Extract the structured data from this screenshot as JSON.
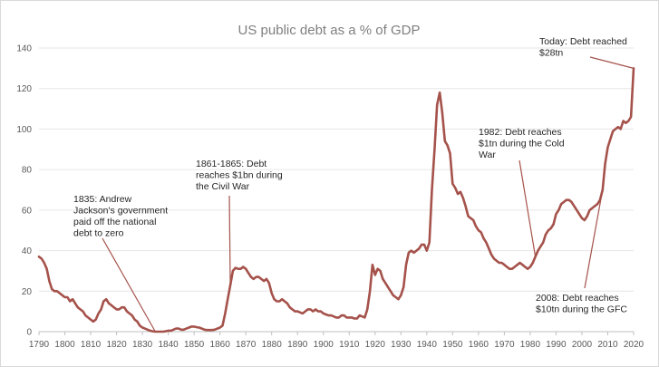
{
  "chart_data": {
    "type": "line",
    "title": "US public debt as a % of GDP",
    "xlabel": "",
    "ylabel": "",
    "xlim": [
      1790,
      2020
    ],
    "ylim": [
      0,
      140
    ],
    "x_ticks": [
      "1790",
      "1800",
      "1810",
      "1820",
      "1830",
      "1840",
      "1850",
      "1860",
      "1870",
      "1880",
      "1890",
      "1900",
      "1910",
      "1920",
      "1930",
      "1940",
      "1950",
      "1960",
      "1970",
      "1980",
      "1990",
      "2000",
      "2010",
      "2020"
    ],
    "y_ticks": [
      "0",
      "20",
      "40",
      "60",
      "80",
      "100",
      "120",
      "140"
    ],
    "grid": true,
    "series": [
      {
        "color": "#a5524b",
        "points": [
          [
            1790,
            37
          ],
          [
            1791,
            36
          ],
          [
            1792,
            34
          ],
          [
            1793,
            31
          ],
          [
            1794,
            25
          ],
          [
            1795,
            21
          ],
          [
            1796,
            20
          ],
          [
            1797,
            20
          ],
          [
            1798,
            19
          ],
          [
            1799,
            18
          ],
          [
            1800,
            17
          ],
          [
            1801,
            17
          ],
          [
            1802,
            15
          ],
          [
            1803,
            16
          ],
          [
            1804,
            14
          ],
          [
            1805,
            12
          ],
          [
            1806,
            11
          ],
          [
            1807,
            10
          ],
          [
            1808,
            8
          ],
          [
            1809,
            7
          ],
          [
            1810,
            6
          ],
          [
            1811,
            5
          ],
          [
            1812,
            6
          ],
          [
            1813,
            9
          ],
          [
            1814,
            11
          ],
          [
            1815,
            15
          ],
          [
            1816,
            16
          ],
          [
            1817,
            14
          ],
          [
            1818,
            13
          ],
          [
            1819,
            12
          ],
          [
            1820,
            11
          ],
          [
            1821,
            11
          ],
          [
            1822,
            12
          ],
          [
            1823,
            12
          ],
          [
            1824,
            10
          ],
          [
            1825,
            9
          ],
          [
            1826,
            8
          ],
          [
            1827,
            6
          ],
          [
            1828,
            5
          ],
          [
            1829,
            3
          ],
          [
            1830,
            2
          ],
          [
            1831,
            1.5
          ],
          [
            1832,
            1
          ],
          [
            1833,
            0.5
          ],
          [
            1834,
            0.2
          ],
          [
            1835,
            0
          ],
          [
            1836,
            0
          ],
          [
            1837,
            0
          ],
          [
            1838,
            0
          ],
          [
            1839,
            0.2
          ],
          [
            1840,
            0.5
          ],
          [
            1841,
            0.5
          ],
          [
            1842,
            1
          ],
          [
            1843,
            1.5
          ],
          [
            1844,
            1.5
          ],
          [
            1845,
            1
          ],
          [
            1846,
            1
          ],
          [
            1847,
            1.5
          ],
          [
            1848,
            2
          ],
          [
            1849,
            2.5
          ],
          [
            1850,
            2.5
          ],
          [
            1851,
            2.2
          ],
          [
            1852,
            2
          ],
          [
            1853,
            1.5
          ],
          [
            1854,
            1
          ],
          [
            1855,
            0.8
          ],
          [
            1856,
            0.8
          ],
          [
            1857,
            0.8
          ],
          [
            1858,
            1
          ],
          [
            1859,
            1.5
          ],
          [
            1860,
            2
          ],
          [
            1861,
            3
          ],
          [
            1862,
            9
          ],
          [
            1863,
            16
          ],
          [
            1864,
            23
          ],
          [
            1865,
            30
          ],
          [
            1866,
            31.5
          ],
          [
            1867,
            31
          ],
          [
            1868,
            31
          ],
          [
            1869,
            32
          ],
          [
            1870,
            31
          ],
          [
            1871,
            29
          ],
          [
            1872,
            27
          ],
          [
            1873,
            26
          ],
          [
            1874,
            27
          ],
          [
            1875,
            27
          ],
          [
            1876,
            26
          ],
          [
            1877,
            25
          ],
          [
            1878,
            26
          ],
          [
            1879,
            24
          ],
          [
            1880,
            19
          ],
          [
            1881,
            16
          ],
          [
            1882,
            15
          ],
          [
            1883,
            15
          ],
          [
            1884,
            16
          ],
          [
            1885,
            15
          ],
          [
            1886,
            14
          ],
          [
            1887,
            12
          ],
          [
            1888,
            11
          ],
          [
            1889,
            10
          ],
          [
            1890,
            10
          ],
          [
            1891,
            9.5
          ],
          [
            1892,
            9
          ],
          [
            1893,
            10
          ],
          [
            1894,
            11
          ],
          [
            1895,
            11
          ],
          [
            1896,
            10
          ],
          [
            1897,
            11
          ],
          [
            1898,
            10
          ],
          [
            1899,
            10
          ],
          [
            1900,
            9
          ],
          [
            1901,
            8.5
          ],
          [
            1902,
            8
          ],
          [
            1903,
            8
          ],
          [
            1904,
            7.5
          ],
          [
            1905,
            7
          ],
          [
            1906,
            7
          ],
          [
            1907,
            8
          ],
          [
            1908,
            8
          ],
          [
            1909,
            7
          ],
          [
            1910,
            7
          ],
          [
            1911,
            7
          ],
          [
            1912,
            6.5
          ],
          [
            1913,
            6.5
          ],
          [
            1914,
            8
          ],
          [
            1915,
            7.5
          ],
          [
            1916,
            7
          ],
          [
            1917,
            11
          ],
          [
            1918,
            20
          ],
          [
            1919,
            33
          ],
          [
            1920,
            28
          ],
          [
            1921,
            31
          ],
          [
            1922,
            30
          ],
          [
            1923,
            26
          ],
          [
            1924,
            24
          ],
          [
            1925,
            22
          ],
          [
            1926,
            20
          ],
          [
            1927,
            18
          ],
          [
            1928,
            17
          ],
          [
            1929,
            16
          ],
          [
            1930,
            18
          ],
          [
            1931,
            22
          ],
          [
            1932,
            33
          ],
          [
            1933,
            39
          ],
          [
            1934,
            40
          ],
          [
            1935,
            39
          ],
          [
            1936,
            40
          ],
          [
            1937,
            41
          ],
          [
            1938,
            43
          ],
          [
            1939,
            43
          ],
          [
            1940,
            40
          ],
          [
            1941,
            44
          ],
          [
            1942,
            70
          ],
          [
            1943,
            90
          ],
          [
            1944,
            112
          ],
          [
            1945,
            118
          ],
          [
            1946,
            108
          ],
          [
            1947,
            94
          ],
          [
            1948,
            92
          ],
          [
            1949,
            88
          ],
          [
            1950,
            73
          ],
          [
            1951,
            71
          ],
          [
            1952,
            68
          ],
          [
            1953,
            69
          ],
          [
            1954,
            66
          ],
          [
            1955,
            62
          ],
          [
            1956,
            57
          ],
          [
            1957,
            56
          ],
          [
            1958,
            55
          ],
          [
            1959,
            52
          ],
          [
            1960,
            50
          ],
          [
            1961,
            49
          ],
          [
            1962,
            46
          ],
          [
            1963,
            44
          ],
          [
            1964,
            41
          ],
          [
            1965,
            38
          ],
          [
            1966,
            36
          ],
          [
            1967,
            35
          ],
          [
            1968,
            34
          ],
          [
            1969,
            34
          ],
          [
            1970,
            33
          ],
          [
            1971,
            32
          ],
          [
            1972,
            31
          ],
          [
            1973,
            31
          ],
          [
            1974,
            32
          ],
          [
            1975,
            33
          ],
          [
            1976,
            34
          ],
          [
            1977,
            33
          ],
          [
            1978,
            32
          ],
          [
            1979,
            31
          ],
          [
            1980,
            32
          ],
          [
            1981,
            34
          ],
          [
            1982,
            37
          ],
          [
            1983,
            40
          ],
          [
            1984,
            42
          ],
          [
            1985,
            44
          ],
          [
            1986,
            48
          ],
          [
            1987,
            50
          ],
          [
            1988,
            51
          ],
          [
            1989,
            53
          ],
          [
            1990,
            58
          ],
          [
            1991,
            60
          ],
          [
            1992,
            63
          ],
          [
            1993,
            64
          ],
          [
            1994,
            65
          ],
          [
            1995,
            65
          ],
          [
            1996,
            64
          ],
          [
            1997,
            62
          ],
          [
            1998,
            60
          ],
          [
            1999,
            58
          ],
          [
            2000,
            56
          ],
          [
            2001,
            55
          ],
          [
            2002,
            57
          ],
          [
            2003,
            60
          ],
          [
            2004,
            61
          ],
          [
            2005,
            62
          ],
          [
            2006,
            63
          ],
          [
            2007,
            65
          ],
          [
            2008,
            70
          ],
          [
            2009,
            83
          ],
          [
            2010,
            91
          ],
          [
            2011,
            95
          ],
          [
            2012,
            99
          ],
          [
            2013,
            100
          ],
          [
            2014,
            101
          ],
          [
            2015,
            100
          ],
          [
            2016,
            104
          ],
          [
            2017,
            103
          ],
          [
            2018,
            104
          ],
          [
            2019,
            106
          ],
          [
            2020,
            130
          ]
        ]
      }
    ],
    "annotations": [
      {
        "lines": [
          "1835: Andrew",
          "Jackson's government",
          "paid off the national",
          "debt to zero"
        ],
        "x": 1835,
        "y": 0
      },
      {
        "lines": [
          "1861-1865: Debt",
          "reaches $1bn during",
          "the Civil War"
        ],
        "x": 1864,
        "y": 23
      },
      {
        "lines": [
          "1982: Debt reaches",
          "$1tn during the Cold",
          "War"
        ],
        "x": 1982,
        "y": 37
      },
      {
        "lines": [
          "Today: Debt reached",
          "$28tn"
        ],
        "x": 2020,
        "y": 130
      },
      {
        "lines": [
          "2008: Debt reaches",
          "$10tn during the GFC"
        ],
        "x": 2008,
        "y": 70
      }
    ]
  }
}
